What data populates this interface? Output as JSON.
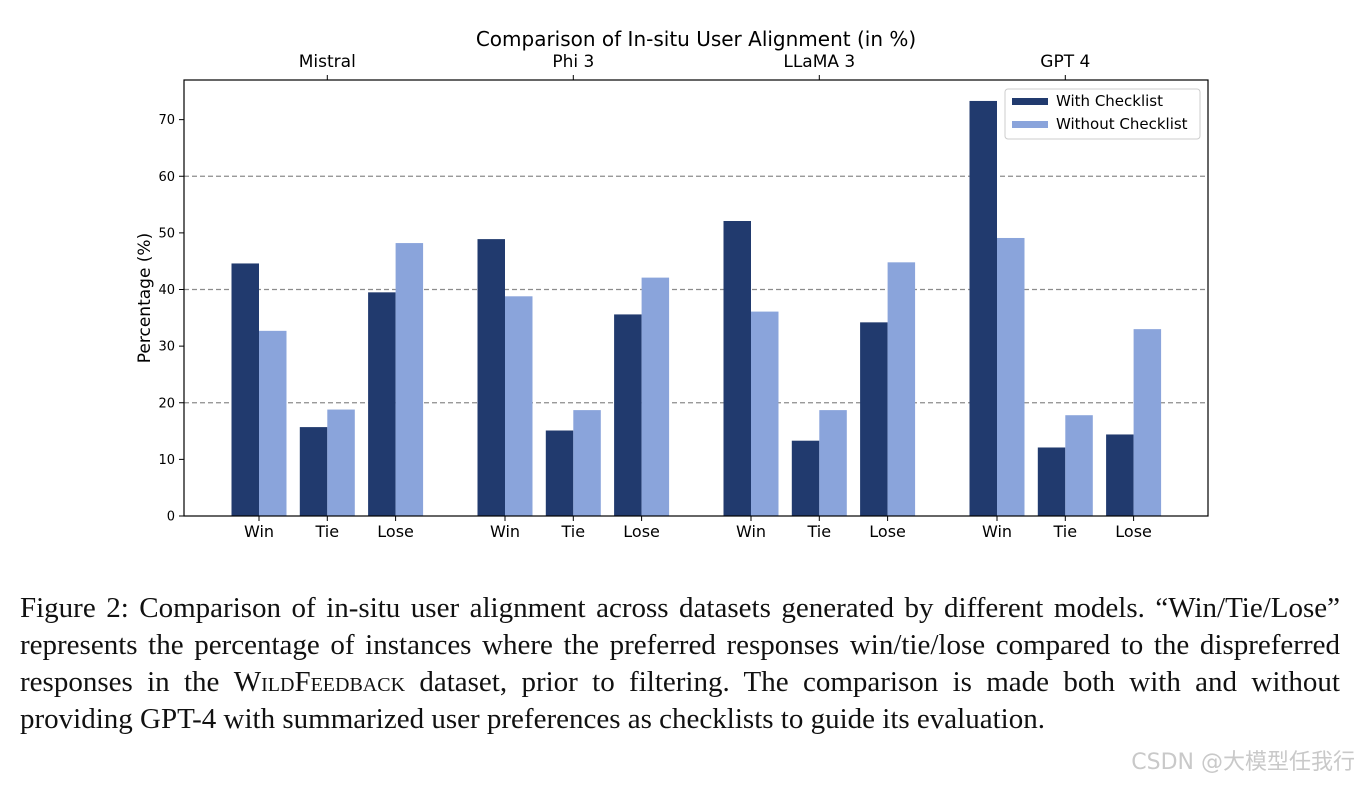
{
  "chart_data": {
    "type": "bar",
    "title": "Comparison of In-situ User Alignment (in %)",
    "ylabel": "Percentage (%)",
    "xlabel": "",
    "ylim": [
      0,
      77
    ],
    "yticks": [
      0,
      10,
      20,
      30,
      40,
      50,
      60,
      70
    ],
    "grid_lines_at": [
      20,
      40,
      60
    ],
    "legend_position": "top-right",
    "groups": [
      "Mistral",
      "Phi 3",
      "LLaMA 3",
      "GPT 4"
    ],
    "categories": [
      "Win",
      "Tie",
      "Lose"
    ],
    "series": [
      {
        "name": "With Checklist",
        "color": "#213a6e",
        "values": [
          [
            44.6,
            15.7,
            39.5
          ],
          [
            48.9,
            15.1,
            35.6
          ],
          [
            52.1,
            13.3,
            34.2
          ],
          [
            73.3,
            12.1,
            14.4
          ]
        ]
      },
      {
        "name": "Without Checklist",
        "color": "#8aa4db",
        "values": [
          [
            32.7,
            18.8,
            48.2
          ],
          [
            38.8,
            18.7,
            42.1
          ],
          [
            36.1,
            18.7,
            44.8
          ],
          [
            49.1,
            17.8,
            33.0
          ]
        ]
      }
    ]
  },
  "caption": {
    "part1": "Figure 2:  Comparison of in-situ user alignment across datasets generated by different models. “Win/Tie/Lose” represents the percentage of instances where the preferred responses win/tie/lose compared to the dispreferred responses in the ",
    "dataset_name": "WildFeedback",
    "part2": " dataset, prior to filtering. The comparison is made both with and without providing GPT-4 with summarized user preferences as checklists to guide its evaluation."
  },
  "watermark": "CSDN @大模型任我行"
}
